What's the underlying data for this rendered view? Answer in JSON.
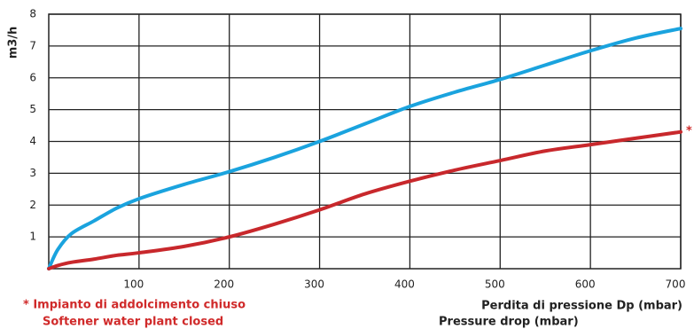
{
  "chart_data": {
    "type": "line",
    "y_label": "m3/h",
    "x_label": [
      "Perdita di pressione Dp (mbar)",
      "Pressure drop (mbar)"
    ],
    "annotations": [
      "*",
      "* Impianto di addolcimento chiuso",
      "Softener water plant closed"
    ],
    "x": [
      0,
      10,
      25,
      50,
      75,
      100,
      150,
      200,
      250,
      300,
      350,
      400,
      450,
      500,
      550,
      600,
      650,
      700
    ],
    "series": [
      {
        "color": "#1aa3de",
        "values": [
          0,
          0.6,
          1.1,
          1.5,
          1.9,
          2.2,
          2.65,
          3.05,
          3.5,
          4.0,
          4.55,
          5.1,
          5.55,
          5.95,
          6.4,
          6.85,
          7.25,
          7.55
        ]
      },
      {
        "color": "#c8282c",
        "values": [
          0,
          0.1,
          0.2,
          0.3,
          0.42,
          0.5,
          0.7,
          1.0,
          1.4,
          1.85,
          2.35,
          2.75,
          3.1,
          3.4,
          3.7,
          3.9,
          4.1,
          4.3
        ]
      }
    ],
    "xlim": [
      0,
      700
    ],
    "ylim": [
      0,
      8
    ],
    "xticks": [
      100,
      200,
      300,
      400,
      500,
      600,
      700
    ],
    "yticks": [
      1,
      2,
      3,
      4,
      5,
      6,
      7,
      8
    ],
    "grid": true
  }
}
